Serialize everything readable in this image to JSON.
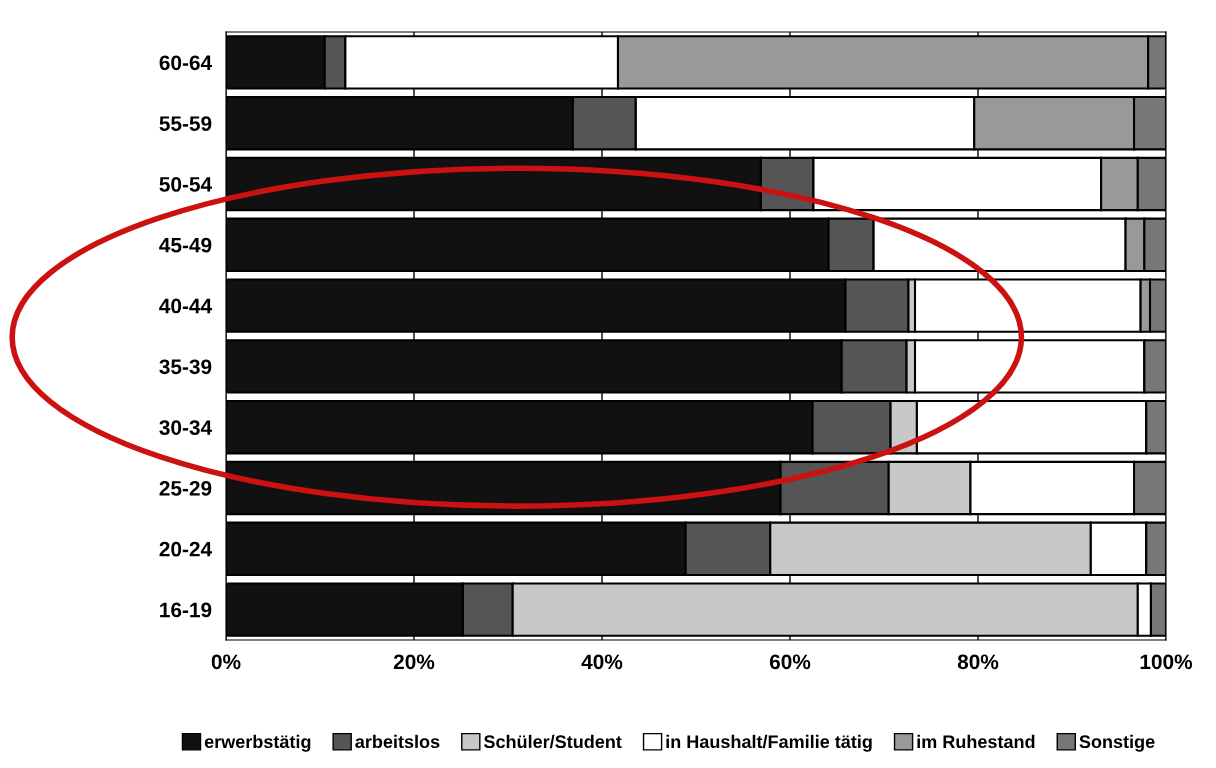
{
  "chart_data": {
    "type": "bar",
    "orientation": "horizontal",
    "stacked": true,
    "categories": [
      "60-64",
      "55-59",
      "50-54",
      "45-49",
      "40-44",
      "35-39",
      "30-34",
      "25-29",
      "20-24",
      "16-19"
    ],
    "series": [
      {
        "name": "erwerbstätig",
        "color": "#111111",
        "values": [
          10.5,
          36.9,
          56.9,
          64.1,
          65.9,
          65.5,
          62.4,
          59.0,
          48.9,
          25.2
        ]
      },
      {
        "name": "arbeitslos",
        "color": "#555555",
        "values": [
          2.2,
          6.7,
          5.6,
          4.8,
          6.7,
          6.9,
          8.3,
          11.5,
          9.0,
          5.3
        ]
      },
      {
        "name": "Schüler/Student",
        "color": "#c8c8c8",
        "values": [
          0,
          0,
          0,
          0,
          0.7,
          0.9,
          2.8,
          8.7,
          34.1,
          66.5
        ]
      },
      {
        "name": "in Haushalt/Familie tätig",
        "color": "#ffffff",
        "values": [
          29.0,
          36.0,
          30.6,
          26.8,
          24.0,
          24.4,
          24.4,
          17.4,
          5.9,
          1.4
        ]
      },
      {
        "name": "im Ruhestand",
        "color": "#999999",
        "values": [
          56.4,
          17.0,
          3.9,
          2.0,
          1.0,
          0,
          0,
          0,
          0,
          0
        ]
      },
      {
        "name": "Sonstige",
        "color": "#777777",
        "values": [
          1.9,
          3.4,
          3.0,
          2.3,
          1.7,
          2.3,
          2.1,
          3.4,
          2.1,
          1.6
        ]
      }
    ],
    "xlim": [
      0,
      100
    ],
    "xticks": [
      {
        "value": 0,
        "label": "0%"
      },
      {
        "value": 20,
        "label": "20%"
      },
      {
        "value": 40,
        "label": "40%"
      },
      {
        "value": 60,
        "label": "60%"
      },
      {
        "value": 80,
        "label": "80%"
      },
      {
        "value": 100,
        "label": "100%"
      }
    ],
    "grid": "x",
    "legend": "bottom"
  }
}
